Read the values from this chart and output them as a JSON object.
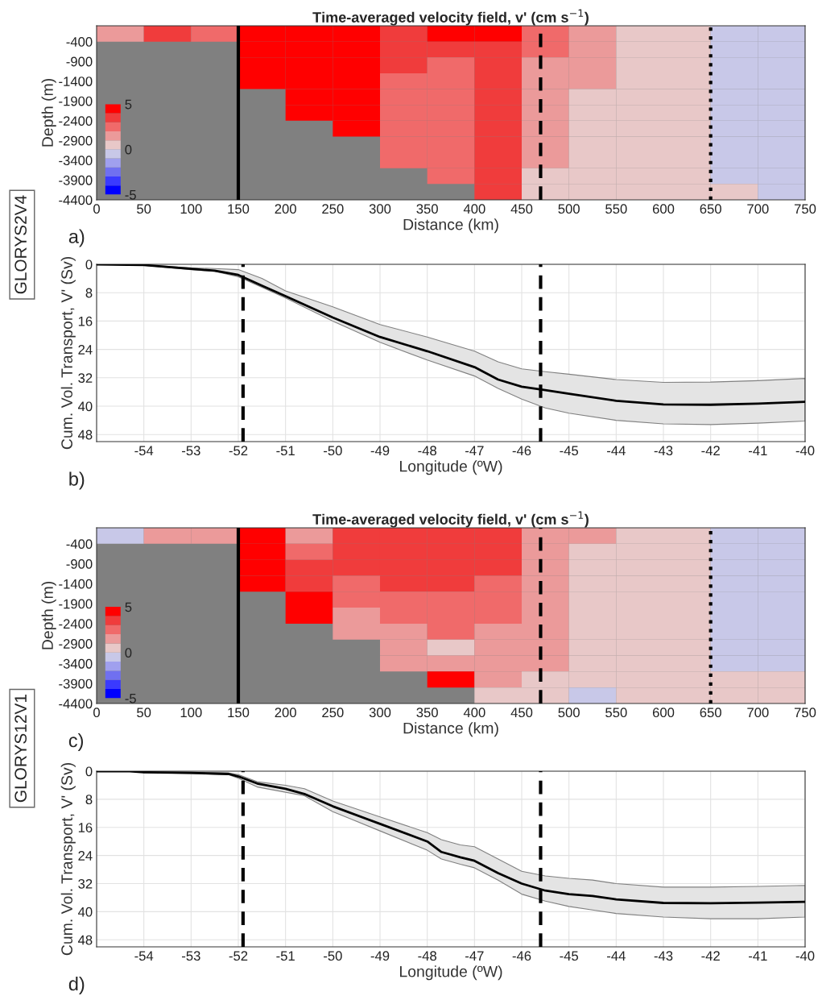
{
  "chart_data": [
    {
      "type": "heatmap",
      "title": "Time-averaged velocity field, v' (cm s$^{−1}$)",
      "xlabel": "Distance (km)",
      "ylabel": "Depth (m)",
      "x": [
        25,
        75,
        125,
        175,
        225,
        275,
        325,
        375,
        425,
        475,
        525,
        575,
        625,
        675,
        725
      ],
      "y": [
        -200,
        -600,
        -1000,
        -1400,
        -1800,
        -2200,
        -2600,
        -3000,
        -3400,
        -3800,
        -4200
      ],
      "cells": [
        [
          1.5,
          3.5,
          2.5,
          4.5,
          4.5,
          4.5,
          3.5,
          4.5,
          4.5,
          2.5,
          1.5,
          0.5,
          0.5,
          -0.5,
          -0.5
        ],
        [
          null,
          null,
          null,
          4.5,
          4.5,
          4.5,
          3.5,
          3.5,
          3.5,
          2.5,
          1.5,
          0.5,
          0.5,
          -0.5,
          -0.5
        ],
        [
          null,
          null,
          null,
          4.5,
          4.5,
          4.5,
          3.5,
          2.5,
          3.5,
          1.5,
          1.5,
          0.5,
          0.5,
          -0.5,
          -0.5
        ],
        [
          null,
          null,
          null,
          4.5,
          4.5,
          4.5,
          2.5,
          2.5,
          3.5,
          1.5,
          1.5,
          0.5,
          0.5,
          -0.5,
          -0.5
        ],
        [
          null,
          null,
          null,
          null,
          4.5,
          4.5,
          2.5,
          2.5,
          3.5,
          1.5,
          0.5,
          0.5,
          0.5,
          -0.5,
          -0.5
        ],
        [
          null,
          null,
          null,
          null,
          4.5,
          4.5,
          2.5,
          2.5,
          3.5,
          1.5,
          0.5,
          0.5,
          0.5,
          -0.5,
          -0.5
        ],
        [
          null,
          null,
          null,
          null,
          null,
          4.5,
          2.5,
          2.5,
          3.5,
          1.5,
          0.5,
          0.5,
          0.5,
          -0.5,
          -0.5
        ],
        [
          null,
          null,
          null,
          null,
          null,
          null,
          2.5,
          2.5,
          3.5,
          1.5,
          0.5,
          0.5,
          0.5,
          -0.5,
          -0.5
        ],
        [
          null,
          null,
          null,
          null,
          null,
          null,
          2.5,
          2.5,
          3.5,
          1.5,
          0.5,
          0.5,
          0.5,
          -0.5,
          -0.5
        ],
        [
          null,
          null,
          null,
          null,
          null,
          null,
          null,
          2.5,
          3.5,
          0.5,
          0.5,
          0.5,
          0.5,
          -0.5,
          -0.5
        ],
        [
          null,
          null,
          null,
          null,
          null,
          null,
          null,
          null,
          3.5,
          0.5,
          0.5,
          0.5,
          0.5,
          0.5,
          -0.5
        ]
      ],
      "colors": [
        "#0000ff",
        "#3a3aff",
        "#7070f0",
        "#a0a0ee",
        "#c8c8e8",
        "#e8c8c8",
        "#eb9a9a",
        "#f06a6a",
        "#f03c3c",
        "#ff0000"
      ],
      "clim": [
        -5,
        5
      ],
      "cticks": [
        5,
        0,
        -5
      ],
      "xlim": [
        0,
        750
      ],
      "ylim": [
        -4400,
        0
      ],
      "xticks": [
        0,
        50,
        100,
        150,
        200,
        250,
        300,
        350,
        400,
        450,
        500,
        550,
        600,
        650,
        700,
        750
      ],
      "yticks": [
        -400,
        -900,
        -1400,
        -1900,
        -2400,
        -2900,
        -3400,
        -3900,
        -4400
      ],
      "ref_lines": [
        {
          "axis": "x",
          "value": 150,
          "line_style": "solid",
          "color": "#000000"
        },
        {
          "axis": "x",
          "value": 470,
          "line_style": "dashed",
          "color": "#000000"
        },
        {
          "axis": "x",
          "value": 650,
          "line_style": "dotted",
          "color": "#000000"
        }
      ],
      "annotations": [
        "a)",
        "GLORYS2V4"
      ]
    },
    {
      "type": "line",
      "xlabel": "Longitude (ºW)",
      "ylabel": "Cum. Vol. Transport, V' (Sv)",
      "series": [
        {
          "color": "#000000",
          "x": [
            -55,
            -54,
            -53,
            -52.5,
            -52,
            -51.5,
            -51,
            -50,
            -49,
            -48,
            -47,
            -46.5,
            -46,
            -45.5,
            -45,
            -44,
            -43,
            -42,
            -41,
            -40
          ],
          "values": [
            0,
            0.2,
            1.3,
            1.8,
            3,
            6,
            9,
            15,
            20.5,
            24.5,
            29,
            32.5,
            34.5,
            35.5,
            36.5,
            38.5,
            39.5,
            39.6,
            39.3,
            38.8
          ],
          "lower": [
            0,
            0.2,
            1,
            1.2,
            1.5,
            4,
            7.5,
            12,
            17,
            20.5,
            24.5,
            27.5,
            29.5,
            30.3,
            31,
            32.5,
            33.3,
            33.2,
            32.8,
            32.2
          ],
          "upper": [
            0,
            0.3,
            1.5,
            2,
            3.5,
            6.5,
            9.5,
            16,
            22,
            27,
            31.5,
            35,
            38,
            40.5,
            42,
            44,
            45,
            45.2,
            44.8,
            44.2
          ]
        }
      ],
      "xlim": [
        -55,
        -40
      ],
      "ylim": [
        50,
        0
      ],
      "xticks": [
        -54,
        -53,
        -52,
        -51,
        -50,
        -49,
        -48,
        -47,
        -46,
        -45,
        -44,
        -43,
        -42,
        -41,
        -40
      ],
      "yticks": [
        0,
        8,
        16,
        24,
        32,
        40,
        48
      ],
      "grid": true,
      "ref_lines": [
        {
          "axis": "x",
          "value": -51.9,
          "line_style": "dashed",
          "color": "#000000"
        },
        {
          "axis": "x",
          "value": -45.6,
          "line_style": "dashed",
          "color": "#000000"
        }
      ],
      "annotations": [
        "b)"
      ]
    },
    {
      "type": "heatmap",
      "title": "Time-averaged velocity field, v' (cm s$^{−1}$)",
      "xlabel": "Distance (km)",
      "ylabel": "Depth (m)",
      "x": [
        25,
        75,
        125,
        175,
        225,
        275,
        325,
        375,
        425,
        475,
        525,
        575,
        625,
        675,
        725
      ],
      "y": [
        -200,
        -600,
        -1000,
        -1400,
        -1800,
        -2200,
        -2600,
        -3000,
        -3400,
        -3800,
        -4200
      ],
      "cells": [
        [
          -0.5,
          1.5,
          1.5,
          4.5,
          1.5,
          3.5,
          3.5,
          3.5,
          3.5,
          1.5,
          1.5,
          0.5,
          0.5,
          -0.5,
          -0.5
        ],
        [
          null,
          null,
          null,
          4.5,
          2.5,
          3.5,
          3.5,
          3.5,
          3.5,
          1.5,
          0.5,
          0.5,
          0.5,
          -0.5,
          -0.5
        ],
        [
          null,
          null,
          null,
          4.5,
          3.5,
          3.5,
          3.5,
          3.5,
          3.5,
          1.5,
          0.5,
          0.5,
          0.5,
          -0.5,
          -0.5
        ],
        [
          null,
          null,
          null,
          4.5,
          3.5,
          2.5,
          3.5,
          3.5,
          2.5,
          1.5,
          0.5,
          0.5,
          0.5,
          -0.5,
          -0.5
        ],
        [
          null,
          null,
          null,
          null,
          4.5,
          2.5,
          2.5,
          2.5,
          2.5,
          1.5,
          0.5,
          0.5,
          0.5,
          -0.5,
          -0.5
        ],
        [
          null,
          null,
          null,
          null,
          4.5,
          1.5,
          2.5,
          2.5,
          2.5,
          1.5,
          0.5,
          0.5,
          0.5,
          -0.5,
          -0.5
        ],
        [
          null,
          null,
          null,
          null,
          null,
          1.5,
          1.5,
          2.5,
          1.5,
          1.5,
          0.5,
          0.5,
          0.5,
          -0.5,
          -0.5
        ],
        [
          null,
          null,
          null,
          null,
          null,
          null,
          1.5,
          0.5,
          1.5,
          1.5,
          0.5,
          0.5,
          0.5,
          -0.5,
          -0.5
        ],
        [
          null,
          null,
          null,
          null,
          null,
          null,
          1.5,
          1.5,
          1.5,
          1.5,
          0.5,
          0.5,
          0.5,
          -0.5,
          -0.5
        ],
        [
          null,
          null,
          null,
          null,
          null,
          null,
          null,
          4.5,
          1.5,
          0.5,
          0.5,
          0.5,
          0.5,
          0.5,
          0.5
        ],
        [
          null,
          null,
          null,
          null,
          null,
          null,
          null,
          null,
          0.5,
          0.5,
          -0.5,
          0.5,
          0.5,
          0.5,
          0.5
        ]
      ],
      "colors": [
        "#0000ff",
        "#3a3aff",
        "#7070f0",
        "#a0a0ee",
        "#c8c8e8",
        "#e8c8c8",
        "#eb9a9a",
        "#f06a6a",
        "#f03c3c",
        "#ff0000"
      ],
      "clim": [
        -5,
        5
      ],
      "cticks": [
        5,
        0,
        -5
      ],
      "xlim": [
        0,
        750
      ],
      "ylim": [
        -4400,
        0
      ],
      "xticks": [
        0,
        50,
        100,
        150,
        200,
        250,
        300,
        350,
        400,
        450,
        500,
        550,
        600,
        650,
        700,
        750
      ],
      "yticks": [
        -400,
        -900,
        -1400,
        -1900,
        -2400,
        -2900,
        -3400,
        -3900,
        -4400
      ],
      "ref_lines": [
        {
          "axis": "x",
          "value": 150,
          "line_style": "solid",
          "color": "#000000"
        },
        {
          "axis": "x",
          "value": 470,
          "line_style": "dashed",
          "color": "#000000"
        },
        {
          "axis": "x",
          "value": 650,
          "line_style": "dotted",
          "color": "#000000"
        }
      ],
      "annotations": [
        "c)",
        "GLORYS12V1"
      ]
    },
    {
      "type": "line",
      "xlabel": "Longitude (ºW)",
      "ylabel": "Cum. Vol. Transport, V' (Sv)",
      "series": [
        {
          "color": "#000000",
          "x": [
            -55,
            -54.3,
            -54,
            -53,
            -52.2,
            -52,
            -51.6,
            -51,
            -50.6,
            -50,
            -49,
            -48,
            -47.7,
            -47.3,
            -47,
            -46.5,
            -46,
            -45.5,
            -45,
            -44.5,
            -44,
            -43,
            -42,
            -41,
            -40
          ],
          "values": [
            0,
            0,
            0.3,
            0.5,
            0.8,
            1.5,
            3.5,
            5,
            6.5,
            10,
            15,
            20,
            23,
            24.5,
            25.5,
            29,
            32,
            34,
            35,
            35.5,
            36.5,
            37.5,
            37.6,
            37.4,
            37.2
          ],
          "lower": [
            0,
            0,
            0.2,
            0.3,
            0.5,
            1,
            3,
            4,
            5,
            8.5,
            13,
            17.5,
            19.5,
            21,
            21.5,
            25,
            28.5,
            29.8,
            30.5,
            31,
            32,
            33,
            33,
            32.8,
            32.5
          ],
          "upper": [
            0,
            0,
            0.4,
            0.7,
            1,
            2,
            4.5,
            6,
            7,
            11.5,
            17,
            22.5,
            25,
            26.5,
            27.5,
            31,
            35,
            37,
            38.5,
            39.5,
            40.5,
            41.5,
            42,
            42,
            41.5
          ]
        }
      ],
      "xlim": [
        -55,
        -40
      ],
      "ylim": [
        50,
        0
      ],
      "xticks": [
        -54,
        -53,
        -52,
        -51,
        -50,
        -49,
        -48,
        -47,
        -46,
        -45,
        -44,
        -43,
        -42,
        -41,
        -40
      ],
      "yticks": [
        0,
        8,
        16,
        24,
        32,
        40,
        48
      ],
      "grid": true,
      "ref_lines": [
        {
          "axis": "x",
          "value": -51.9,
          "line_style": "dashed",
          "color": "#000000"
        },
        {
          "axis": "x",
          "value": -45.6,
          "line_style": "dashed",
          "color": "#000000"
        }
      ],
      "annotations": [
        "d)"
      ]
    }
  ]
}
